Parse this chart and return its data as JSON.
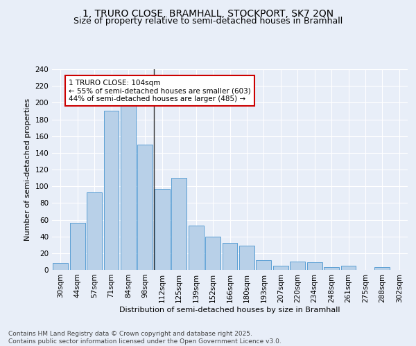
{
  "title_line1": "1, TRURO CLOSE, BRAMHALL, STOCKPORT, SK7 2QN",
  "title_line2": "Size of property relative to semi-detached houses in Bramhall",
  "categories": [
    "30sqm",
    "44sqm",
    "57sqm",
    "71sqm",
    "84sqm",
    "98sqm",
    "112sqm",
    "125sqm",
    "139sqm",
    "152sqm",
    "166sqm",
    "180sqm",
    "193sqm",
    "207sqm",
    "220sqm",
    "234sqm",
    "248sqm",
    "261sqm",
    "275sqm",
    "288sqm",
    "302sqm"
  ],
  "values": [
    8,
    56,
    93,
    190,
    200,
    150,
    97,
    110,
    53,
    40,
    32,
    29,
    12,
    5,
    10,
    9,
    3,
    5,
    0,
    3,
    0
  ],
  "bar_color": "#b8d0e8",
  "bar_edge_color": "#5a9fd4",
  "vertical_line_x": 5.5,
  "property_label": "1 TRURO CLOSE: 104sqm",
  "smaller_pct": "55%",
  "smaller_count": 603,
  "larger_pct": "44%",
  "larger_count": 485,
  "annotation_box_color": "#ffffff",
  "annotation_box_edge": "#cc0000",
  "xlabel": "Distribution of semi-detached houses by size in Bramhall",
  "ylabel": "Number of semi-detached properties",
  "ylim": [
    0,
    240
  ],
  "yticks": [
    0,
    20,
    40,
    60,
    80,
    100,
    120,
    140,
    160,
    180,
    200,
    220,
    240
  ],
  "background_color": "#e8eef8",
  "plot_bg_color": "#e8eef8",
  "grid_color": "#ffffff",
  "footer_line1": "Contains HM Land Registry data © Crown copyright and database right 2025.",
  "footer_line2": "Contains public sector information licensed under the Open Government Licence v3.0.",
  "title_fontsize": 10,
  "subtitle_fontsize": 9,
  "axis_label_fontsize": 8,
  "tick_fontsize": 7.5,
  "annotation_fontsize": 7.5,
  "footer_fontsize": 6.5
}
